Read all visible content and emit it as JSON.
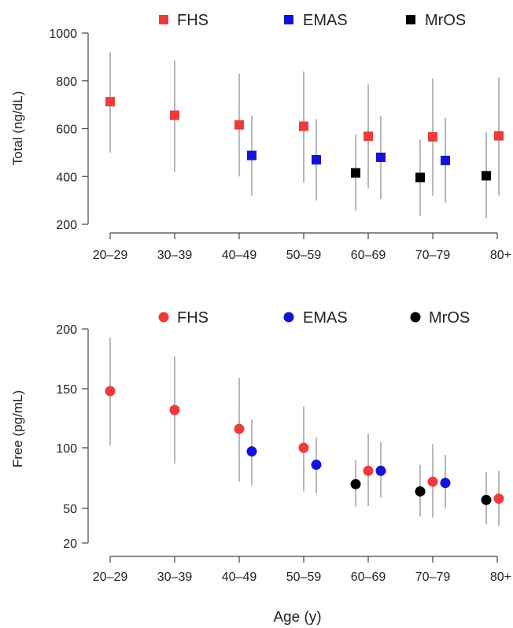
{
  "colors": {
    "FHS": "#ee3b3b",
    "EMAS": "#1414d4",
    "MrOS": "#000000"
  },
  "xlabel": "Age (y)",
  "chart_data": [
    {
      "type": "scatter",
      "marker": "square",
      "ylabel": "Total (ng/dL)",
      "ylim": [
        200,
        1000
      ],
      "yticks": [
        200,
        400,
        600,
        800,
        1000
      ],
      "yscale": "linear",
      "categories": [
        "20–29",
        "30–39",
        "40–49",
        "50–59",
        "60–69",
        "70–79",
        "80+"
      ],
      "legend": [
        "FHS",
        "EMAS",
        "MrOS"
      ],
      "legend_position": "top",
      "series": [
        {
          "name": "FHS",
          "points": [
            {
              "category": "20–29",
              "value": 713,
              "low": 500,
              "high": 920
            },
            {
              "category": "30–39",
              "value": 656,
              "low": 420,
              "high": 885
            },
            {
              "category": "40–49",
              "value": 616,
              "low": 400,
              "high": 830
            },
            {
              "category": "50–59",
              "value": 610,
              "low": 375,
              "high": 840
            },
            {
              "category": "60–69",
              "value": 568,
              "low": 350,
              "high": 785
            },
            {
              "category": "70–79",
              "value": 566,
              "low": 320,
              "high": 810
            },
            {
              "category": "80+",
              "value": 570,
              "low": 320,
              "high": 815
            }
          ]
        },
        {
          "name": "EMAS",
          "points": [
            {
              "category": "40–49",
              "value": 488,
              "low": 320,
              "high": 655
            },
            {
              "category": "50–59",
              "value": 470,
              "low": 300,
              "high": 640
            },
            {
              "category": "60–69",
              "value": 480,
              "low": 305,
              "high": 655
            },
            {
              "category": "70–79",
              "value": 467,
              "low": 290,
              "high": 645
            }
          ]
        },
        {
          "name": "MrOS",
          "points": [
            {
              "category": "60–69",
              "value": 415,
              "low": 255,
              "high": 575
            },
            {
              "category": "70–79",
              "value": 396,
              "low": 235,
              "high": 555
            },
            {
              "category": "80+",
              "value": 403,
              "low": 225,
              "high": 585
            }
          ]
        }
      ]
    },
    {
      "type": "scatter",
      "marker": "circle",
      "ylabel": "Free (pg/mL)",
      "ylim": [
        20,
        200
      ],
      "yticks": [
        20,
        50,
        100,
        150,
        200
      ],
      "yscale": "nonlinear (equal spacing 20–50–100–150–200)",
      "categories": [
        "20–29",
        "30–39",
        "40–49",
        "50–59",
        "60–69",
        "70–79",
        "80+"
      ],
      "legend": [
        "FHS",
        "EMAS",
        "MrOS"
      ],
      "legend_position": "top",
      "series": [
        {
          "name": "FHS",
          "points": [
            {
              "category": "20–29",
              "value": 148,
              "low": 102,
              "high": 193
            },
            {
              "category": "30–39",
              "value": 132,
              "low": 87,
              "high": 177
            },
            {
              "category": "40–49",
              "value": 116,
              "low": 72,
              "high": 159
            },
            {
              "category": "50–59",
              "value": 100,
              "low": 64,
              "high": 135
            },
            {
              "category": "60–69",
              "value": 81,
              "low": 52,
              "high": 112
            },
            {
              "category": "70–79",
              "value": 72,
              "low": 42,
              "high": 103
            },
            {
              "category": "80+",
              "value": 58,
              "low": 35,
              "high": 81
            }
          ]
        },
        {
          "name": "EMAS",
          "points": [
            {
              "category": "40–49",
              "value": 97,
              "low": 69,
              "high": 124
            },
            {
              "category": "50–59",
              "value": 86,
              "low": 62,
              "high": 109
            },
            {
              "category": "60–69",
              "value": 81,
              "low": 59,
              "high": 105
            },
            {
              "category": "70–79",
              "value": 71,
              "low": 50,
              "high": 94
            }
          ]
        },
        {
          "name": "MrOS",
          "points": [
            {
              "category": "60–69",
              "value": 70,
              "low": 51,
              "high": 90
            },
            {
              "category": "70–79",
              "value": 64,
              "low": 43,
              "high": 86
            },
            {
              "category": "80+",
              "value": 57,
              "low": 36,
              "high": 80
            }
          ]
        }
      ]
    }
  ]
}
